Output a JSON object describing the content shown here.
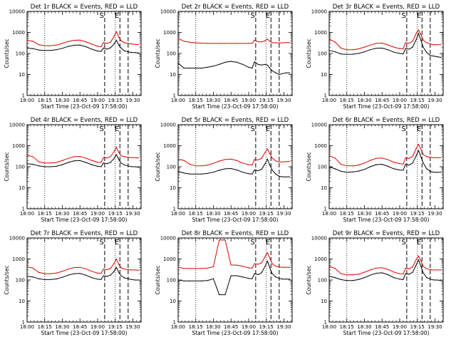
{
  "figure": {
    "ylabel": "Counts/sec",
    "xlabel": "Start Time (23-Oct-09 17:58:00)",
    "x_ticks": [
      "18:00",
      "18:15",
      "18:30",
      "18:45",
      "19:00",
      "19:15",
      "19:30"
    ],
    "y_ticks": [
      "1",
      "10",
      "100",
      "1000",
      "10000"
    ],
    "legend": "BLACK = Events, RED = LLD",
    "colors": {
      "events": "#000000",
      "lld": "#e00000",
      "axes": "#000000"
    },
    "markers": [
      {
        "label": "S",
        "time": "19:06"
      },
      {
        "label": "E",
        "time": "19:19"
      },
      {
        "label": "",
        "time": "19:26"
      }
    ]
  },
  "chart_data": [
    {
      "type": "line",
      "title": "Det 1r BLACK = Events, RED = LLD",
      "xlabel": "Start Time (23-Oct-09 17:58:00)",
      "ylabel": "Counts/sec",
      "yscale": "log",
      "ylim": [
        1,
        10000
      ],
      "xlim": [
        "18:00",
        "19:37"
      ],
      "x": [
        "18:00",
        "18:05",
        "18:10",
        "18:15",
        "18:20",
        "18:25",
        "18:30",
        "18:35",
        "18:40",
        "18:45",
        "18:50",
        "18:55",
        "19:00",
        "19:03",
        "19:05",
        "19:08",
        "19:11",
        "19:14",
        "19:16",
        "19:18",
        "19:20",
        "19:23",
        "19:26",
        "19:29",
        "19:32",
        "19:35"
      ],
      "series": [
        {
          "name": "Events",
          "color": "#000000",
          "values": [
            180,
            170,
            145,
            140,
            140,
            150,
            175,
            215,
            245,
            250,
            210,
            160,
            130,
            125,
            180,
            160,
            185,
            280,
            420,
            250,
            180,
            130,
            120,
            110,
            110,
            105
          ]
        },
        {
          "name": "LLD",
          "color": "#e00000",
          "values": [
            420,
            380,
            260,
            235,
            235,
            250,
            300,
            370,
            420,
            430,
            360,
            280,
            220,
            210,
            330,
            300,
            340,
            650,
            1100,
            600,
            400,
            320,
            300,
            280,
            270,
            260
          ]
        }
      ]
    },
    {
      "type": "line",
      "title": "Det 2r BLACK = Events, RED = LLD",
      "xlabel": "Start Time (23-Oct-09 17:58:00)",
      "ylabel": "Counts/sec",
      "yscale": "log",
      "ylim": [
        1,
        10000
      ],
      "xlim": [
        "18:00",
        "19:37"
      ],
      "x": [
        "18:00",
        "18:05",
        "18:10",
        "18:15",
        "18:20",
        "18:25",
        "18:30",
        "18:35",
        "18:40",
        "18:45",
        "18:50",
        "18:55",
        "19:00",
        "19:03",
        "19:05",
        "19:08",
        "19:11",
        "19:14",
        "19:16",
        "19:18",
        "19:20",
        "19:23",
        "19:26",
        "19:29",
        "19:32",
        "19:35"
      ],
      "series": [
        {
          "name": "Events",
          "color": "#000000",
          "values": [
            35,
            20,
            20,
            20,
            20,
            22,
            25,
            30,
            38,
            42,
            38,
            30,
            22,
            20,
            40,
            30,
            28,
            30,
            28,
            20,
            15,
            12,
            10,
            11,
            12,
            12
          ]
        },
        {
          "name": "LLD",
          "color": "#e00000",
          "values": [
            520,
            380,
            340,
            320,
            310,
            300,
            300,
            300,
            300,
            300,
            300,
            300,
            300,
            300,
            430,
            360,
            350,
            400,
            480,
            380,
            330,
            320,
            320,
            320,
            330,
            330
          ]
        }
      ]
    },
    {
      "type": "line",
      "title": "Det 3r BLACK = Events, RED = LLD",
      "xlabel": "Start Time (23-Oct-09 17:58:00)",
      "ylabel": "Counts/sec",
      "yscale": "log",
      "ylim": [
        1,
        10000
      ],
      "xlim": [
        "18:00",
        "19:37"
      ],
      "x": [
        "18:00",
        "18:05",
        "18:10",
        "18:15",
        "18:20",
        "18:25",
        "18:30",
        "18:35",
        "18:40",
        "18:45",
        "18:50",
        "18:55",
        "19:00",
        "19:03",
        "19:05",
        "19:08",
        "19:11",
        "19:14",
        "19:16",
        "19:18",
        "19:20",
        "19:23",
        "19:26",
        "19:29",
        "19:32",
        "19:35"
      ],
      "series": [
        {
          "name": "Events",
          "color": "#000000",
          "values": [
            140,
            120,
            95,
            90,
            92,
            100,
            120,
            150,
            175,
            180,
            150,
            115,
            100,
            95,
            170,
            160,
            200,
            450,
            900,
            420,
            200,
            110,
            80,
            75,
            70,
            65
          ]
        },
        {
          "name": "LLD",
          "color": "#e00000",
          "values": [
            480,
            350,
            180,
            150,
            150,
            165,
            200,
            250,
            300,
            310,
            255,
            200,
            170,
            165,
            330,
            300,
            380,
            900,
            1300,
            800,
            430,
            320,
            280,
            260,
            260,
            260
          ]
        }
      ]
    },
    {
      "type": "line",
      "title": "Det 4r BLACK = Events, RED = LLD",
      "xlabel": "Start Time (23-Oct-09 17:58:00)",
      "ylabel": "Counts/sec",
      "yscale": "log",
      "ylim": [
        1,
        10000
      ],
      "xlim": [
        "18:00",
        "19:37"
      ],
      "x": [
        "18:00",
        "18:05",
        "18:10",
        "18:15",
        "18:20",
        "18:25",
        "18:30",
        "18:35",
        "18:40",
        "18:45",
        "18:50",
        "18:55",
        "19:00",
        "19:03",
        "19:05",
        "19:08",
        "19:11",
        "19:14",
        "19:16",
        "19:18",
        "19:20",
        "19:23",
        "19:26",
        "19:29",
        "19:32",
        "19:35"
      ],
      "series": [
        {
          "name": "Events",
          "color": "#000000",
          "values": [
            140,
            130,
            110,
            100,
            100,
            105,
            125,
            160,
            190,
            195,
            160,
            125,
            105,
            100,
            150,
            140,
            160,
            250,
            380,
            220,
            150,
            120,
            110,
            100,
            100,
            95
          ]
        },
        {
          "name": "LLD",
          "color": "#e00000",
          "values": [
            350,
            300,
            170,
            150,
            150,
            160,
            195,
            250,
            300,
            310,
            260,
            200,
            165,
            160,
            270,
            260,
            300,
            520,
            850,
            480,
            330,
            300,
            280,
            270,
            270,
            260
          ]
        }
      ]
    },
    {
      "type": "line",
      "title": "Det 5r BLACK = Events, RED = LLD",
      "xlabel": "Start Time (23-Oct-09 17:58:00)",
      "ylabel": "Counts/sec",
      "yscale": "log",
      "ylim": [
        1,
        10000
      ],
      "xlim": [
        "18:00",
        "19:37"
      ],
      "x": [
        "18:00",
        "18:05",
        "18:10",
        "18:15",
        "18:20",
        "18:25",
        "18:30",
        "18:35",
        "18:40",
        "18:45",
        "18:50",
        "18:55",
        "19:00",
        "19:03",
        "19:05",
        "19:08",
        "19:11",
        "19:14",
        "19:16",
        "19:18",
        "19:20",
        "19:23",
        "19:26",
        "19:29",
        "19:32",
        "19:35"
      ],
      "series": [
        {
          "name": "Events",
          "color": "#000000",
          "values": [
            60,
            50,
            45,
            45,
            45,
            48,
            55,
            68,
            80,
            82,
            70,
            55,
            46,
            45,
            70,
            65,
            75,
            140,
            230,
            120,
            70,
            45,
            35,
            33,
            33,
            33
          ]
        },
        {
          "name": "LLD",
          "color": "#e00000",
          "values": [
            230,
            200,
            130,
            110,
            110,
            120,
            145,
            185,
            220,
            230,
            195,
            150,
            125,
            120,
            220,
            210,
            250,
            480,
            700,
            420,
            260,
            190,
            170,
            170,
            175,
            175
          ]
        }
      ]
    },
    {
      "type": "line",
      "title": "Det 6r BLACK = Events, RED = LLD",
      "xlabel": "Start Time (23-Oct-09 17:58:00)",
      "ylabel": "Counts/sec",
      "yscale": "log",
      "ylim": [
        1,
        10000
      ],
      "xlim": [
        "18:00",
        "19:37"
      ],
      "x": [
        "18:00",
        "18:05",
        "18:10",
        "18:15",
        "18:20",
        "18:25",
        "18:30",
        "18:35",
        "18:40",
        "18:45",
        "18:50",
        "18:55",
        "19:00",
        "19:03",
        "19:05",
        "19:08",
        "19:11",
        "19:14",
        "19:16",
        "19:18",
        "19:20",
        "19:23",
        "19:26",
        "19:29",
        "19:32",
        "19:35"
      ],
      "series": [
        {
          "name": "Events",
          "color": "#000000",
          "values": [
            100,
            80,
            60,
            55,
            56,
            62,
            75,
            100,
            125,
            130,
            105,
            80,
            70,
            68,
            130,
            120,
            150,
            330,
            600,
            300,
            150,
            80,
            60,
            55,
            55,
            55
          ]
        },
        {
          "name": "LLD",
          "color": "#e00000",
          "values": [
            330,
            260,
            130,
            110,
            110,
            120,
            150,
            200,
            250,
            260,
            215,
            165,
            140,
            135,
            260,
            250,
            310,
            750,
            1150,
            680,
            380,
            300,
            280,
            270,
            270,
            270
          ]
        }
      ]
    },
    {
      "type": "line",
      "title": "Det 7r BLACK = Events, RED = LLD",
      "xlabel": "Start Time (23-Oct-09 17:58:00)",
      "ylabel": "Counts/sec",
      "yscale": "log",
      "ylim": [
        1,
        10000
      ],
      "xlim": [
        "18:00",
        "19:37"
      ],
      "x": [
        "18:00",
        "18:05",
        "18:10",
        "18:15",
        "18:20",
        "18:25",
        "18:30",
        "18:35",
        "18:40",
        "18:45",
        "18:50",
        "18:55",
        "19:00",
        "19:03",
        "19:05",
        "19:08",
        "19:11",
        "19:14",
        "19:16",
        "19:18",
        "19:20",
        "19:23",
        "19:26",
        "19:29",
        "19:32",
        "19:35"
      ],
      "series": [
        {
          "name": "Events",
          "color": "#000000",
          "values": [
            150,
            140,
            115,
            105,
            105,
            112,
            135,
            170,
            200,
            205,
            170,
            130,
            110,
            105,
            160,
            150,
            170,
            260,
            400,
            230,
            160,
            125,
            115,
            105,
            100,
            100
          ]
        },
        {
          "name": "LLD",
          "color": "#e00000",
          "values": [
            420,
            370,
            230,
            200,
            200,
            215,
            260,
            330,
            390,
            400,
            340,
            260,
            215,
            210,
            330,
            310,
            350,
            620,
            1000,
            560,
            380,
            330,
            310,
            300,
            300,
            290
          ]
        }
      ]
    },
    {
      "type": "line",
      "title": "Det 8r BLACK = Events, RED = LLD",
      "xlabel": "Start Time (23-Oct-09 17:58:00)",
      "ylabel": "Counts/sec",
      "yscale": "log",
      "ylim": [
        1,
        10000
      ],
      "xlim": [
        "18:00",
        "19:37"
      ],
      "x": [
        "18:00",
        "18:05",
        "18:10",
        "18:15",
        "18:20",
        "18:25",
        "18:30",
        "18:35",
        "18:40",
        "18:45",
        "18:50",
        "18:55",
        "19:00",
        "19:03",
        "19:05",
        "19:08",
        "19:11",
        "19:14",
        "19:16",
        "19:18",
        "19:20",
        "19:23",
        "19:26",
        "19:29",
        "19:32",
        "19:35"
      ],
      "series": [
        {
          "name": "Events",
          "color": "#000000",
          "values": [
            100,
            90,
            90,
            90,
            90,
            95,
            115,
            20,
            20,
            160,
            160,
            140,
            120,
            115,
            200,
            180,
            220,
            450,
            800,
            380,
            200,
            140,
            120,
            110,
            110,
            110
          ]
        },
        {
          "name": "LLD",
          "color": "#e00000",
          "values": [
            400,
            360,
            350,
            350,
            350,
            370,
            430,
            8000,
            8000,
            520,
            510,
            450,
            380,
            370,
            600,
            560,
            650,
            1300,
            2000,
            1100,
            600,
            450,
            420,
            400,
            400,
            400
          ]
        }
      ]
    },
    {
      "type": "line",
      "title": "Det 9r BLACK = Events, RED = LLD",
      "xlabel": "Start Time (23-Oct-09 17:58:00)",
      "ylabel": "Counts/sec",
      "yscale": "log",
      "ylim": [
        1,
        10000
      ],
      "xlim": [
        "18:00",
        "19:37"
      ],
      "x": [
        "18:00",
        "18:05",
        "18:10",
        "18:15",
        "18:20",
        "18:25",
        "18:30",
        "18:35",
        "18:40",
        "18:45",
        "18:50",
        "18:55",
        "19:00",
        "19:03",
        "19:05",
        "19:08",
        "19:11",
        "19:14",
        "19:16",
        "19:18",
        "19:20",
        "19:23",
        "19:26",
        "19:29",
        "19:32",
        "19:35"
      ],
      "series": [
        {
          "name": "Events",
          "color": "#000000",
          "values": [
            150,
            130,
            105,
            95,
            95,
            105,
            130,
            170,
            210,
            220,
            180,
            130,
            110,
            105,
            200,
            190,
            230,
            520,
            900,
            460,
            220,
            130,
            110,
            100,
            100,
            95
          ]
        },
        {
          "name": "LLD",
          "color": "#e00000",
          "values": [
            450,
            360,
            200,
            175,
            175,
            190,
            235,
            300,
            370,
            385,
            320,
            240,
            200,
            195,
            360,
            340,
            420,
            950,
            1400,
            820,
            450,
            340,
            310,
            300,
            300,
            300
          ]
        }
      ]
    }
  ]
}
